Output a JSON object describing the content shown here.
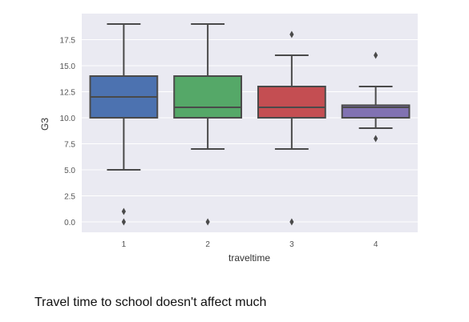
{
  "chart_data": {
    "type": "box",
    "xlabel": "traveltime",
    "ylabel": "G3",
    "ylim": [
      -1,
      20
    ],
    "yticks": [
      "0.0",
      "2.5",
      "5.0",
      "7.5",
      "10.0",
      "12.5",
      "15.0",
      "17.5"
    ],
    "grid": true,
    "categories": [
      "1",
      "2",
      "3",
      "4"
    ],
    "boxes": [
      {
        "category": "1",
        "whisker_low": 5,
        "q1": 10,
        "median": 12,
        "q3": 14,
        "whisker_high": 19,
        "outliers": [
          0,
          1
        ],
        "color": "#4C72B0"
      },
      {
        "category": "2",
        "whisker_low": 7,
        "q1": 10,
        "median": 11,
        "q3": 14,
        "whisker_high": 19,
        "outliers": [
          0
        ],
        "color": "#55A868"
      },
      {
        "category": "3",
        "whisker_low": 7,
        "q1": 10,
        "median": 11,
        "q3": 13,
        "whisker_high": 16,
        "outliers": [
          0,
          18
        ],
        "color": "#C44E52"
      },
      {
        "category": "4",
        "whisker_low": 9,
        "q1": 10,
        "median": 11,
        "q3": 11.2,
        "whisker_high": 13,
        "outliers": [
          8,
          16
        ],
        "color": "#8172B2"
      }
    ]
  },
  "caption": "Travel time to school doesn't affect much",
  "colors": {
    "plot_background": "#EAEAF2",
    "grid": "#FFFFFF",
    "line": "#4A4A4A"
  }
}
